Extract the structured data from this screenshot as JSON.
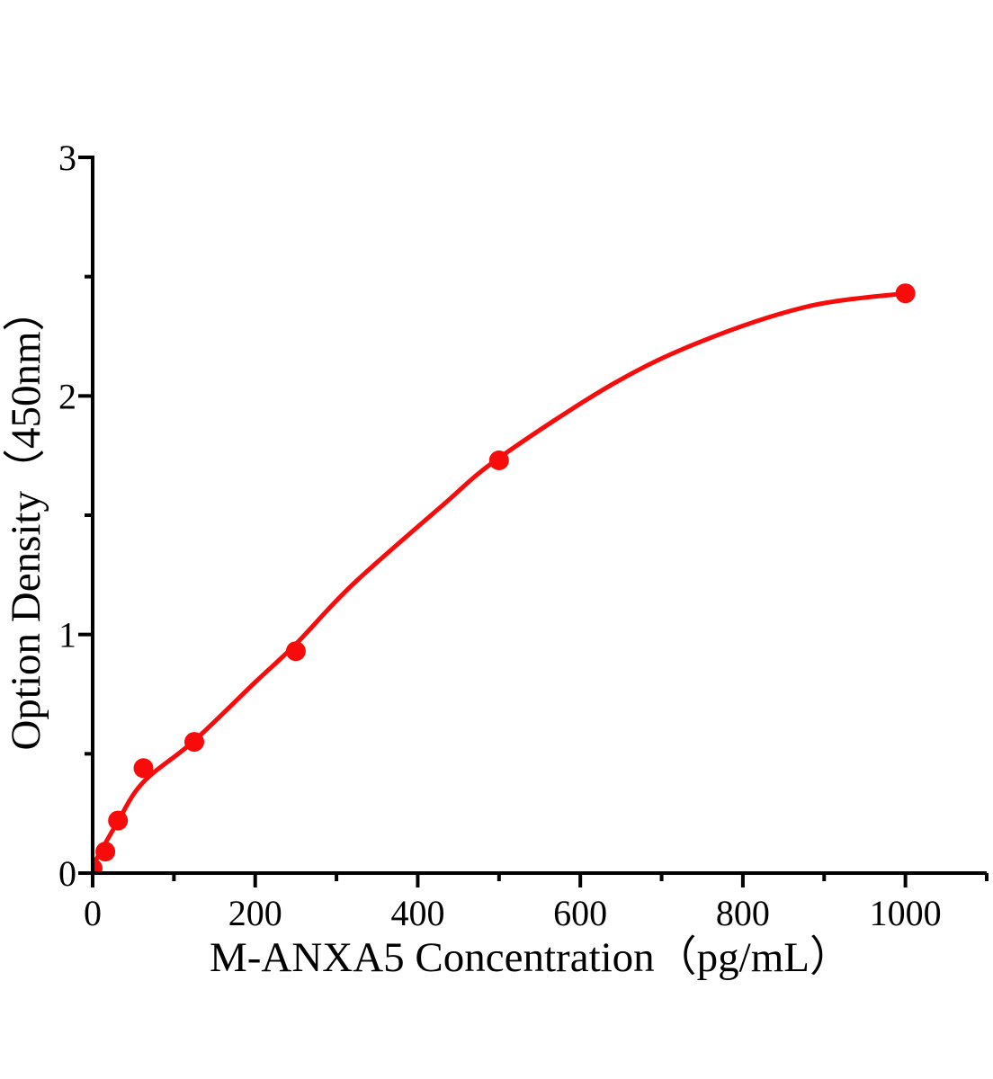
{
  "figure": {
    "background": "#ffffff",
    "title": ""
  },
  "colors": {
    "accent_red": "#f80b0b",
    "axis_black": "#000000",
    "background_white": "#ffffff"
  },
  "chart_data": {
    "type": "scatter",
    "title": "",
    "xlabel": "M-ANXA5 Concentration（pg/mL）",
    "ylabel": "Option Density（450nm）",
    "xlim": [
      0,
      1100
    ],
    "ylim": [
      0,
      3
    ],
    "x_major_ticks": [
      0,
      200,
      400,
      600,
      800,
      1000
    ],
    "x_minor_ticks": [
      100,
      300,
      500,
      700,
      900,
      1100
    ],
    "y_major_ticks": [
      0,
      1,
      2,
      3
    ],
    "y_minor_ticks": [
      0.5,
      1.5,
      2.5
    ],
    "x_tick_labels": [
      "0",
      "200",
      "400",
      "600",
      "800",
      "1000"
    ],
    "y_tick_labels": [
      "0",
      "1",
      "2",
      "3"
    ],
    "grid": false,
    "legend": null,
    "series": [
      {
        "name": "standard-points",
        "type": "scatter",
        "marker": "circle",
        "color": "#f80b0b",
        "points": [
          [
            0,
            0.02
          ],
          [
            15.6,
            0.09
          ],
          [
            31.2,
            0.22
          ],
          [
            62.5,
            0.44
          ],
          [
            125,
            0.55
          ],
          [
            250,
            0.93
          ],
          [
            500,
            1.73
          ],
          [
            1000,
            2.43
          ]
        ]
      },
      {
        "name": "fit-curve",
        "type": "line",
        "color": "#f80b0b",
        "points": [
          [
            0,
            0.03
          ],
          [
            30,
            0.21
          ],
          [
            62,
            0.38
          ],
          [
            125,
            0.555
          ],
          [
            200,
            0.8
          ],
          [
            250,
            0.96
          ],
          [
            320,
            1.21
          ],
          [
            430,
            1.54
          ],
          [
            500,
            1.74
          ],
          [
            640,
            2.05
          ],
          [
            750,
            2.23
          ],
          [
            880,
            2.375
          ],
          [
            1000,
            2.43
          ]
        ]
      }
    ]
  }
}
